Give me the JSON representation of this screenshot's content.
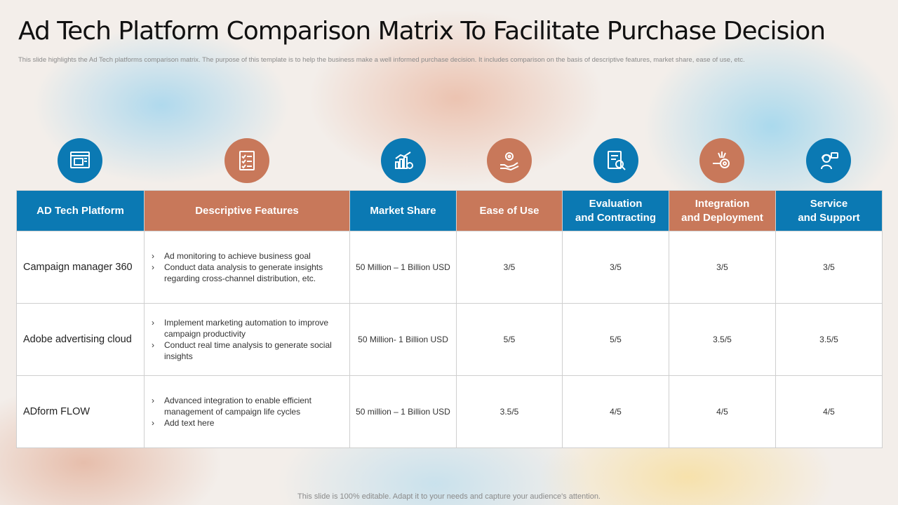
{
  "slide": {
    "title": "Ad Tech Platform Comparison Matrix To Facilitate Purchase Decision",
    "subtitle": "This slide highlights the Ad Tech platforms comparison matrix. The purpose of this template is to help the business make a well informed purchase decision. It includes comparison on the basis of descriptive features, market share, ease of use, etc.",
    "footer": "This slide is 100% editable. Adapt it to your needs and capture your audience's attention."
  },
  "colors": {
    "blue": "#0b79b3",
    "orange": "#c8785a"
  },
  "icons": [
    "browser-window-icon",
    "checklist-icon",
    "bar-chart-icon",
    "gear-hand-icon",
    "document-search-icon",
    "gear-integration-icon",
    "support-agent-icon"
  ],
  "table": {
    "headers": [
      {
        "line1": "AD Tech Platform",
        "line2": ""
      },
      {
        "line1": "Descriptive Features",
        "line2": ""
      },
      {
        "line1": "Market Share",
        "line2": ""
      },
      {
        "line1": "Ease of Use",
        "line2": ""
      },
      {
        "line1": "Evaluation",
        "line2": "and Contracting"
      },
      {
        "line1": "Integration",
        "line2": "and Deployment"
      },
      {
        "line1": "Service",
        "line2": "and Support"
      }
    ],
    "rows": [
      {
        "platform": "Campaign manager 360",
        "features": [
          "Ad monitoring to achieve business goal",
          "Conduct data analysis to generate insights regarding cross-channel distribution, etc."
        ],
        "market_share": "50 Million – 1 Billion USD",
        "ease": "3/5",
        "evaluation": "3/5",
        "integration": "3/5",
        "service": "3/5"
      },
      {
        "platform": "Adobe advertising cloud",
        "features": [
          "Implement marketing automation to improve campaign productivity",
          "Conduct real time analysis to generate social insights"
        ],
        "market_share": "50 Million- 1 Billion USD",
        "ease": "5/5",
        "evaluation": "5/5",
        "integration": "3.5/5",
        "service": "3.5/5"
      },
      {
        "platform": "ADform FLOW",
        "features": [
          "Advanced integration to enable efficient management of campaign life cycles",
          "Add text here"
        ],
        "market_share": "50 million – 1 Billion USD",
        "ease": "3.5/5",
        "evaluation": "4/5",
        "integration": "4/5",
        "service": "4/5"
      }
    ]
  }
}
